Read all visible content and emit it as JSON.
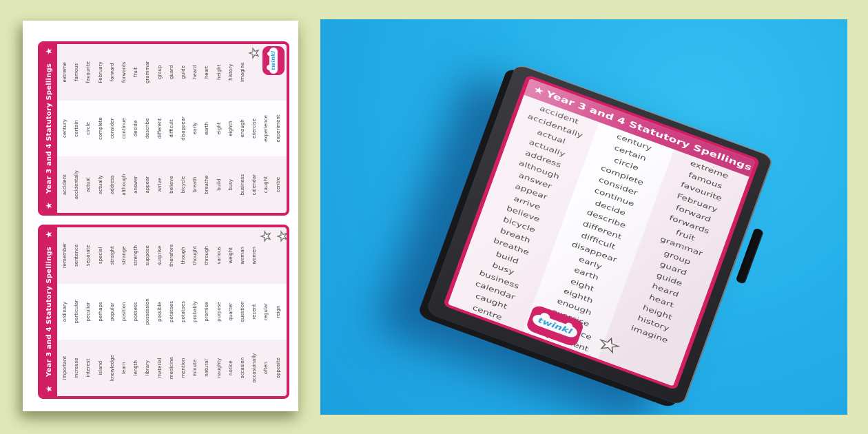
{
  "brand": {
    "logo_text": "twinkl",
    "pink": "#d21f63",
    "logo_blue": "#2aa9e0"
  },
  "colors": {
    "page_background": "#dee7b5",
    "panel_blue": "#25b0e9",
    "sheet_white": "#ffffff",
    "card_column_pink": "#f8eff4",
    "card_column_white": "#fdfcfe",
    "case_dark": "#2c2c30",
    "word_text": "#404040"
  },
  "card_front": {
    "title": "Year 3 and 4 Statutory Spellings",
    "columns": [
      {
        "words": [
          "accident",
          "accidentally",
          "actual",
          "actually",
          "address",
          "although",
          "answer",
          "appear",
          "arrive",
          "believe",
          "bicycle",
          "breath",
          "breathe",
          "build",
          "busy",
          "business",
          "calendar",
          "caught",
          "centre"
        ]
      },
      {
        "words": [
          "century",
          "certain",
          "circle",
          "complete",
          "consider",
          "continue",
          "decide",
          "describe",
          "different",
          "difficult",
          "disappear",
          "early",
          "earth",
          "eight",
          "eighth",
          "enough",
          "exercise",
          "experience",
          "experiment"
        ]
      },
      {
        "words": [
          "extreme",
          "famous",
          "favourite",
          "February",
          "forward",
          "forwards",
          "fruit",
          "grammar",
          "group",
          "guard",
          "guide",
          "heard",
          "heart",
          "height",
          "history",
          "imagine"
        ]
      }
    ]
  },
  "card_back": {
    "title": "Year 3 and 4 Statutory Spellings",
    "columns": [
      {
        "words": [
          "important",
          "increase",
          "interest",
          "island",
          "knowledge",
          "learn",
          "length",
          "library",
          "material",
          "medicine",
          "mention",
          "minute",
          "natural",
          "naughty",
          "notice",
          "occasion",
          "occasionally",
          "often",
          "opposite"
        ]
      },
      {
        "words": [
          "ordinary",
          "particular",
          "peculiar",
          "perhaps",
          "popular",
          "position",
          "possess",
          "possession",
          "possible",
          "potatoes",
          "potatoes",
          "probably",
          "promise",
          "purpose",
          "quarter",
          "question",
          "recent",
          "regular",
          "reign"
        ]
      },
      {
        "words": [
          "remember",
          "sentence",
          "separate",
          "special",
          "straight",
          "strange",
          "strength",
          "suppose",
          "surprise",
          "therefore",
          "though",
          "thought",
          "through",
          "various",
          "weight",
          "woman",
          "women"
        ]
      }
    ]
  }
}
